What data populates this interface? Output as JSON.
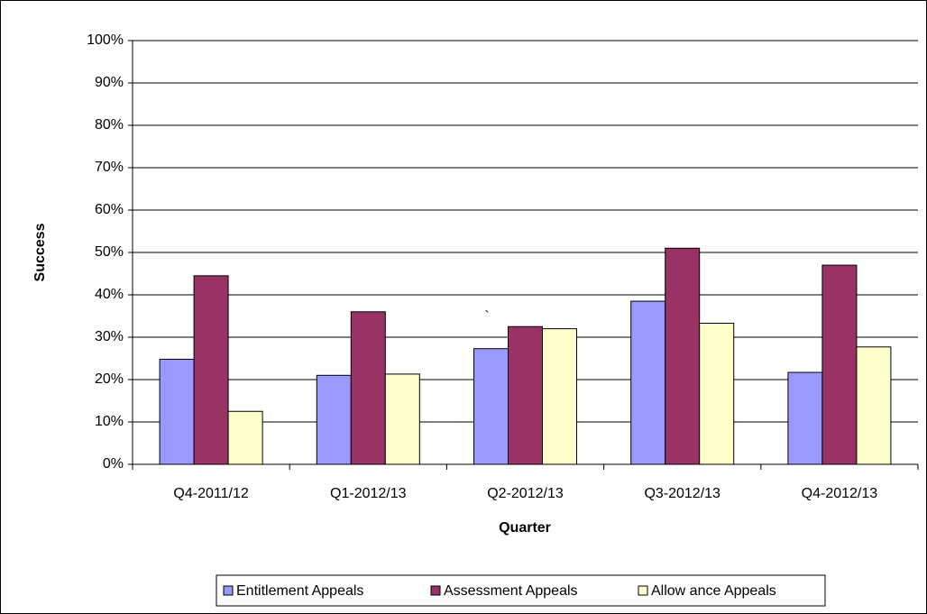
{
  "chart_data": {
    "type": "bar",
    "y_label": "Success",
    "x_label": "Quarter",
    "annotation": "`",
    "categories": [
      "Q4-2011/12",
      "Q1-2012/13",
      "Q2-2012/13",
      "Q3-2012/13",
      "Q4-2012/13"
    ],
    "series": [
      {
        "name": "Entitlement Appeals",
        "color": "#9999ff",
        "values": [
          24.8,
          21,
          27.3,
          38.5,
          21.7
        ]
      },
      {
        "name": "Assessment Appeals",
        "color": "#993366",
        "values": [
          44.5,
          36,
          32.5,
          51,
          47
        ]
      },
      {
        "name": "Allow ance Appeals",
        "color": "#ffffcc",
        "values": [
          12.5,
          21.3,
          32,
          33.3,
          27.7
        ]
      }
    ],
    "ylim": [
      0,
      100
    ],
    "yticks": [
      {
        "value": 0,
        "label": "0%"
      },
      {
        "value": 10,
        "label": "10%"
      },
      {
        "value": 20,
        "label": "20%"
      },
      {
        "value": 30,
        "label": "30%"
      },
      {
        "value": 40,
        "label": "40%"
      },
      {
        "value": 50,
        "label": "50%"
      },
      {
        "value": 60,
        "label": "60%"
      },
      {
        "value": 70,
        "label": "70%"
      },
      {
        "value": 80,
        "label": "80%"
      },
      {
        "value": 90,
        "label": "90%"
      },
      {
        "value": 100,
        "label": "100%"
      }
    ],
    "grid": true,
    "legend": "bottom"
  }
}
